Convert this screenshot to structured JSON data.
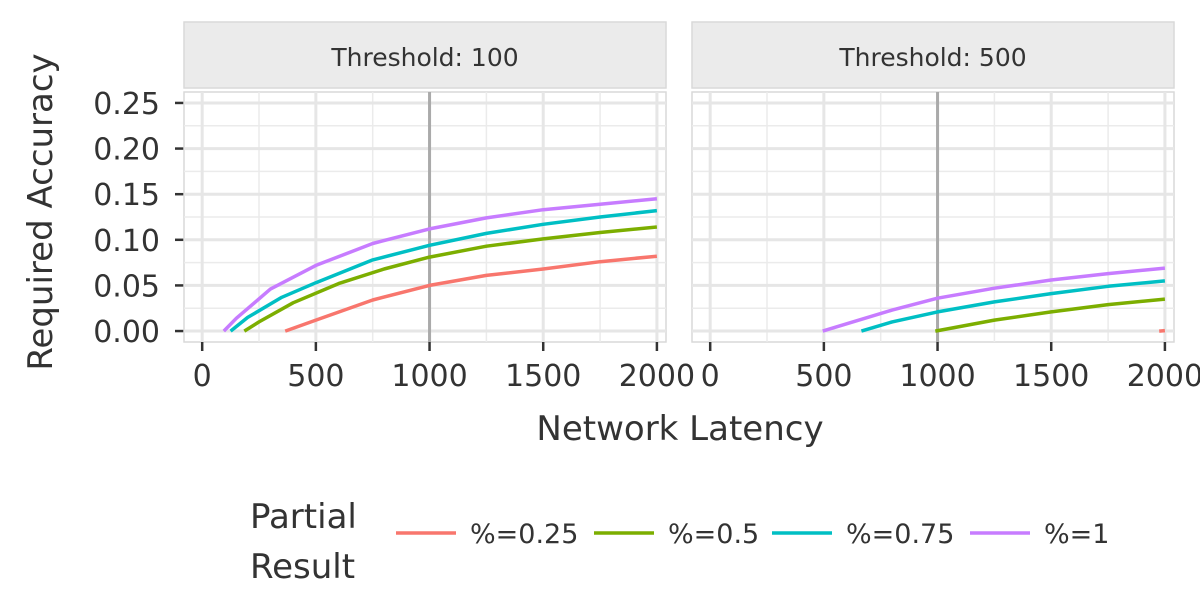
{
  "chart_data": {
    "type": "line",
    "xlabel": "Network Latency",
    "ylabel": "Required Accuracy",
    "xlim": [
      -80,
      2040
    ],
    "ylim": [
      -0.012,
      0.262
    ],
    "x_ticks": [
      0,
      500,
      1000,
      1500,
      2000
    ],
    "x_tick_labels": [
      "0",
      "500",
      "1000",
      "1500",
      "2000"
    ],
    "y_ticks": [
      0.0,
      0.05,
      0.1,
      0.15,
      0.2,
      0.25
    ],
    "y_tick_labels": [
      "0.00",
      "0.05",
      "0.10",
      "0.15",
      "0.20",
      "0.25"
    ],
    "grid": true,
    "reference_line_x": 1000,
    "legend": {
      "title_lines": [
        "Partial",
        "Result"
      ],
      "position": "bottom"
    },
    "series_meta": [
      {
        "name": "%=0.25",
        "color": "#F8766D"
      },
      {
        "name": "%=0.5",
        "color": "#7CAE00"
      },
      {
        "name": "%=0.75",
        "color": "#00BFC4"
      },
      {
        "name": "%=1",
        "color": "#C77CFF"
      }
    ],
    "panels": [
      {
        "strip": "Threshold: 100",
        "series": [
          {
            "name": "%=0.25",
            "x": [
              365,
              500,
              750,
              1000,
              1250,
              1500,
              1750,
              2000
            ],
            "y": [
              0.0,
              0.012,
              0.034,
              0.05,
              0.061,
              0.068,
              0.076,
              0.082
            ]
          },
          {
            "name": "%=0.5",
            "x": [
              185,
              250,
              400,
              600,
              800,
              1000,
              1250,
              1500,
              1750,
              2000
            ],
            "y": [
              0.0,
              0.01,
              0.031,
              0.052,
              0.068,
              0.081,
              0.093,
              0.101,
              0.108,
              0.114
            ]
          },
          {
            "name": "%=0.75",
            "x": [
              125,
              200,
              350,
              500,
              750,
              1000,
              1250,
              1500,
              1750,
              2000
            ],
            "y": [
              0.0,
              0.015,
              0.037,
              0.053,
              0.078,
              0.094,
              0.107,
              0.117,
              0.125,
              0.132
            ]
          },
          {
            "name": "%=1",
            "x": [
              95,
              150,
              300,
              500,
              750,
              1000,
              1250,
              1500,
              1750,
              2000
            ],
            "y": [
              0.0,
              0.014,
              0.046,
              0.072,
              0.096,
              0.112,
              0.124,
              0.133,
              0.139,
              0.145
            ]
          }
        ]
      },
      {
        "strip": "Threshold: 500",
        "series": [
          {
            "name": "%=0.25",
            "x": [
              1975,
              2000
            ],
            "y": [
              0.0,
              0.0005
            ]
          },
          {
            "name": "%=0.5",
            "x": [
              990,
              1250,
              1500,
              1750,
              2000
            ],
            "y": [
              0.0,
              0.012,
              0.021,
              0.029,
              0.035
            ]
          },
          {
            "name": "%=0.75",
            "x": [
              665,
              800,
              1000,
              1250,
              1500,
              1750,
              2000
            ],
            "y": [
              0.0,
              0.01,
              0.021,
              0.032,
              0.041,
              0.049,
              0.055
            ]
          },
          {
            "name": "%=1",
            "x": [
              495,
              600,
              800,
              1000,
              1250,
              1500,
              1750,
              2000
            ],
            "y": [
              0.0,
              0.008,
              0.023,
              0.036,
              0.047,
              0.056,
              0.063,
              0.069
            ]
          }
        ]
      }
    ]
  }
}
